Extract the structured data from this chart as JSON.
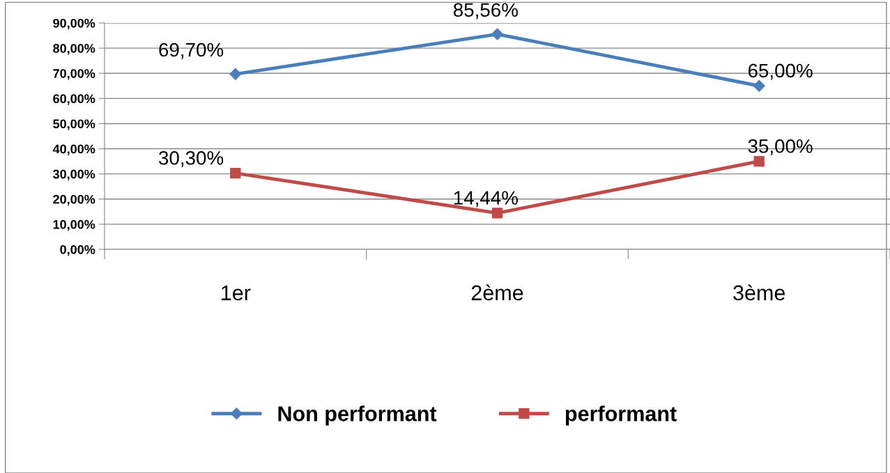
{
  "chart_data": {
    "type": "line",
    "categories": [
      "1er",
      "2ème",
      "3ème"
    ],
    "series": [
      {
        "name": "Non performant",
        "color": "#4a7ebb",
        "marker": "diamond",
        "values": [
          69.7,
          85.56,
          65.0
        ],
        "value_labels": [
          "69,70%",
          "85,56%",
          "65,00%"
        ]
      },
      {
        "name": "performant",
        "color": "#be4b48",
        "marker": "square",
        "values": [
          30.3,
          14.44,
          35.0
        ],
        "value_labels": [
          "30,30%",
          "14,44%",
          "35,00%"
        ]
      }
    ],
    "ylim": [
      0,
      90
    ],
    "yticks": [
      {
        "value": 0,
        "label": "0,00%"
      },
      {
        "value": 10,
        "label": "10,00%"
      },
      {
        "value": 20,
        "label": "20,00%"
      },
      {
        "value": 30,
        "label": "30,00%"
      },
      {
        "value": 40,
        "label": "40,00%"
      },
      {
        "value": 50,
        "label": "50,00%"
      },
      {
        "value": 60,
        "label": "60,00%"
      },
      {
        "value": 70,
        "label": "70,00%"
      },
      {
        "value": 80,
        "label": "80,00%"
      },
      {
        "value": 90,
        "label": "90,00%"
      }
    ],
    "grid": "y",
    "legend": "bottom",
    "line_style": "solid"
  }
}
